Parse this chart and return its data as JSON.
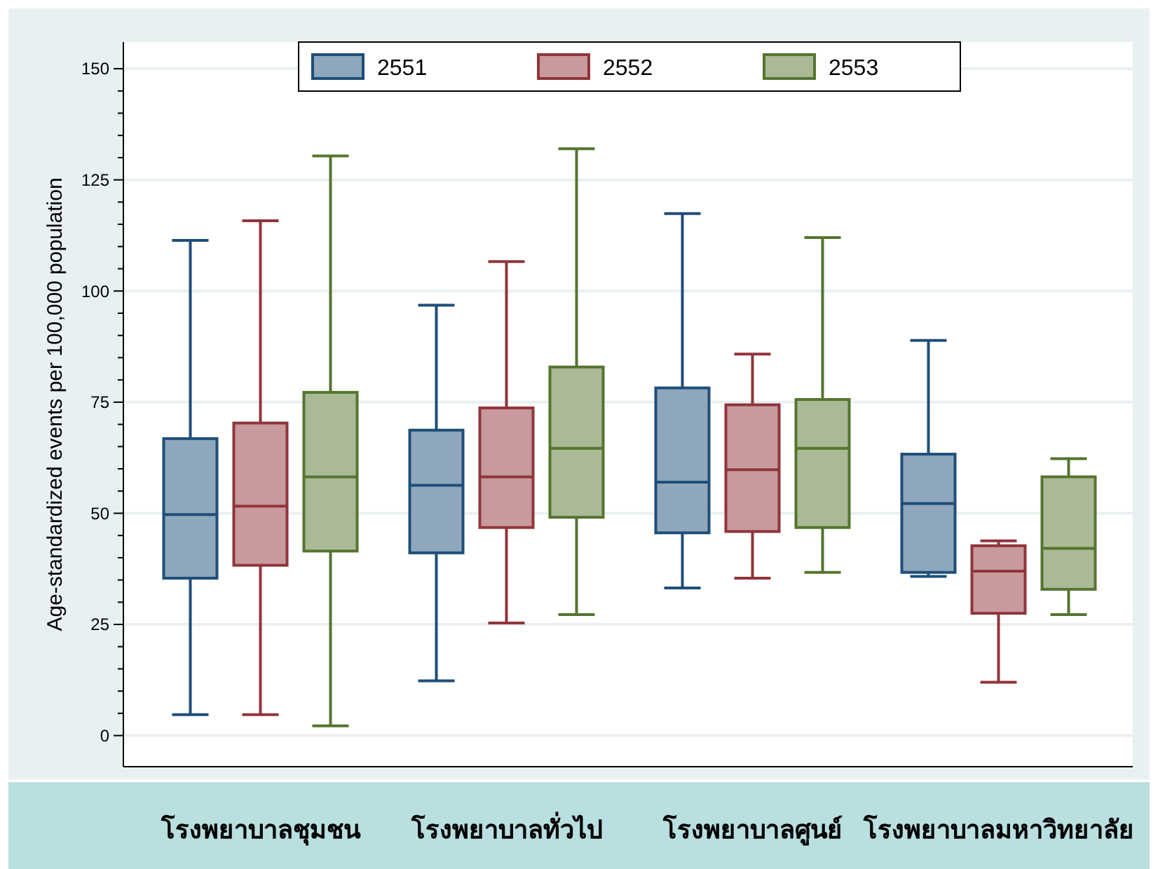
{
  "chart_data": {
    "type": "box",
    "ylabel": "Age-standardized events per 100,000 population",
    "categories": [
      "โรงพยาบาลชุมชน",
      "โรงพยาบาลทั่วไป",
      "โรงพยาบาลศูนย์",
      "โรงพยาบาลมหาวิทยาลัย"
    ],
    "ylim": [
      -7,
      156
    ],
    "yticks": [
      0,
      25,
      50,
      75,
      100,
      125,
      150
    ],
    "grid": "y",
    "legend": "top",
    "series": [
      {
        "name": "2551",
        "color": "#1f4e79",
        "boxes": [
          {
            "low": 4.7,
            "q1": 35.4,
            "median": 49.7,
            "q3": 66.8,
            "high": 111.4
          },
          {
            "low": 12.3,
            "q1": 41.1,
            "median": 56.3,
            "q3": 68.7,
            "high": 96.8
          },
          {
            "low": 33.2,
            "q1": 45.6,
            "median": 57,
            "q3": 78.2,
            "high": 117.4
          },
          {
            "low": 35.8,
            "q1": 36.7,
            "median": 52.2,
            "q3": 63.3,
            "high": 88.9
          }
        ]
      },
      {
        "name": "2552",
        "color": "#90353b",
        "boxes": [
          {
            "low": 4.7,
            "q1": 38.3,
            "median": 51.6,
            "q3": 70.3,
            "high": 115.8
          },
          {
            "low": 25.3,
            "q1": 46.8,
            "median": 58.2,
            "q3": 73.7,
            "high": 106.6
          },
          {
            "low": 35.4,
            "q1": 45.9,
            "median": 59.8,
            "q3": 74.4,
            "high": 85.8
          },
          {
            "low": 12,
            "q1": 27.5,
            "median": 37,
            "q3": 42.7,
            "high": 43.8
          }
        ]
      },
      {
        "name": "2553",
        "color": "#55752f",
        "boxes": [
          {
            "low": 2.2,
            "q1": 41.5,
            "median": 58.2,
            "q3": 77.2,
            "high": 130.4
          },
          {
            "low": 27.2,
            "q1": 49.1,
            "median": 64.6,
            "q3": 82.9,
            "high": 132
          },
          {
            "low": 36.7,
            "q1": 46.8,
            "median": 64.6,
            "q3": 75.6,
            "high": 112
          },
          {
            "low": 27.2,
            "q1": 32.9,
            "median": 42.1,
            "q3": 58.2,
            "high": 62.3
          }
        ]
      }
    ]
  }
}
